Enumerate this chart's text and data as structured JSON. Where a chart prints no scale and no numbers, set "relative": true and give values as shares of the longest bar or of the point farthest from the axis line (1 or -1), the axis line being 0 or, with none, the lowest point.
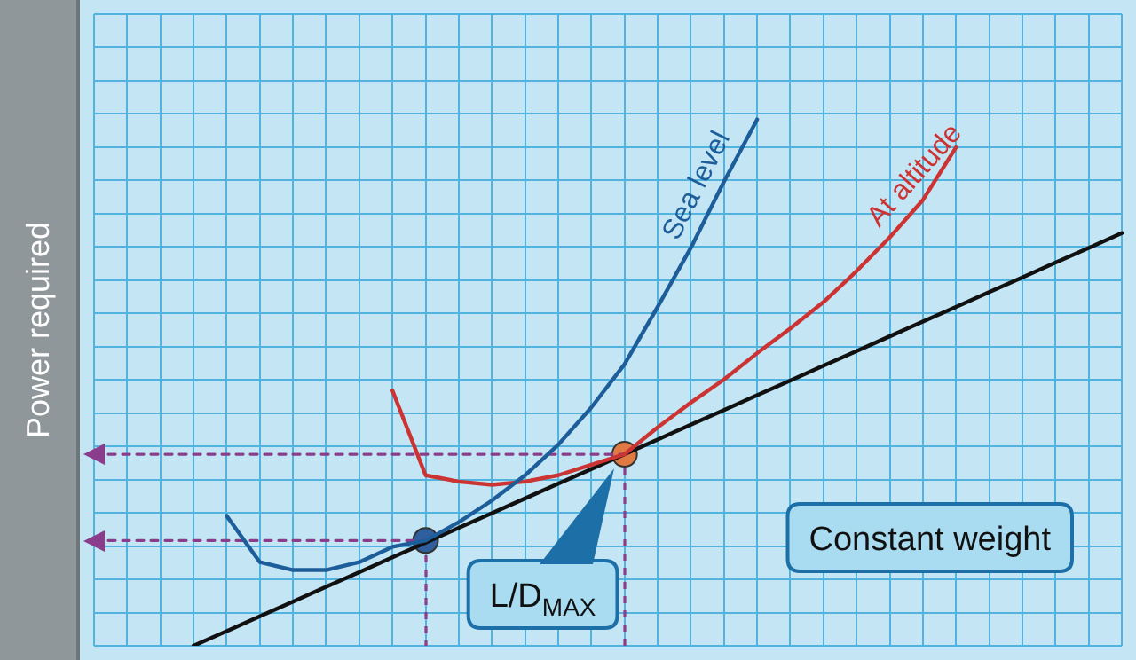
{
  "chart_data": {
    "type": "line",
    "relative": true,
    "ylabel": "Power required",
    "grid": true,
    "legend": false,
    "categories": [
      null,
      null,
      null,
      null,
      null,
      null,
      null,
      null,
      null,
      null,
      null,
      null,
      null,
      null,
      null,
      null,
      null,
      null,
      null,
      null,
      null,
      null,
      null,
      null,
      null,
      null,
      null,
      null,
      null,
      null,
      null,
      null
    ],
    "series": [
      {
        "name": "Sea level",
        "color": "#1d5d99",
        "values": [
          null,
          null,
          null,
          null,
          0.247,
          0.159,
          0.144,
          0.144,
          0.159,
          0.188,
          0.2,
          0.235,
          0.276,
          0.324,
          0.382,
          0.453,
          0.535,
          0.644,
          0.756,
          0.882,
          1,
          null,
          null,
          null,
          null,
          null,
          null,
          null,
          null,
          null,
          null,
          null
        ]
      },
      {
        "name": "At altitude",
        "color": "#cc3333",
        "values": [
          null,
          null,
          null,
          null,
          null,
          null,
          null,
          null,
          null,
          0.485,
          0.324,
          0.312,
          0.306,
          0.312,
          0.324,
          0.344,
          0.364,
          0.415,
          0.462,
          0.506,
          0.556,
          0.603,
          0.653,
          0.712,
          0.776,
          0.847,
          0.947,
          null,
          null,
          null,
          null,
          null
        ]
      },
      {
        "color": "#111111",
        "values": [
          null,
          null,
          null,
          0,
          0.028,
          0.056,
          0.084,
          0.112,
          0.14,
          0.168,
          0.196,
          0.224,
          0.252,
          0.28,
          0.308,
          0.336,
          0.364,
          0.392,
          0.42,
          0.448,
          0.476,
          0.504,
          0.532,
          0.56,
          0.588,
          0.616,
          0.644,
          0.672,
          0.7,
          0.728,
          0.756,
          0.784
        ]
      },
      {
        "color": "#8a3d8a",
        "line_style": "dashed",
        "values": [
          0.2,
          0.2,
          0.2,
          0.2,
          0.2,
          0.2,
          0.2,
          0.2,
          0.2,
          0.2,
          0.2,
          null,
          null,
          null,
          null,
          null,
          null,
          null,
          null,
          null,
          null,
          null,
          null,
          null,
          null,
          null,
          null,
          null,
          null,
          null,
          null,
          null
        ]
      },
      {
        "color": "#8a3d8a",
        "line_style": "dashed",
        "values": [
          0.364,
          0.364,
          0.364,
          0.364,
          0.364,
          0.364,
          0.364,
          0.364,
          0.364,
          0.364,
          0.364,
          0.364,
          0.364,
          0.364,
          0.364,
          0.364,
          0.364,
          null,
          null,
          null,
          null,
          null,
          null,
          null,
          null,
          null,
          null,
          null,
          null,
          null,
          null,
          null
        ]
      },
      {
        "color": "#2f5f9f",
        "marker": "circle",
        "values": [
          null,
          null,
          null,
          null,
          null,
          null,
          null,
          null,
          null,
          null,
          0.2,
          null,
          null,
          null,
          null,
          null,
          null,
          null,
          null,
          null,
          null,
          null,
          null,
          null,
          null,
          null,
          null,
          null,
          null,
          null,
          null,
          null
        ]
      },
      {
        "color": "#e07a45",
        "marker": "circle",
        "values": [
          null,
          null,
          null,
          null,
          null,
          null,
          null,
          null,
          null,
          null,
          null,
          null,
          null,
          null,
          null,
          null,
          0.364,
          null,
          null,
          null,
          null,
          null,
          null,
          null,
          null,
          null,
          null,
          null,
          null,
          null,
          null,
          null
        ]
      }
    ],
    "annotations": [
      "L/D$_{MAX}$",
      "Constant weight"
    ]
  }
}
